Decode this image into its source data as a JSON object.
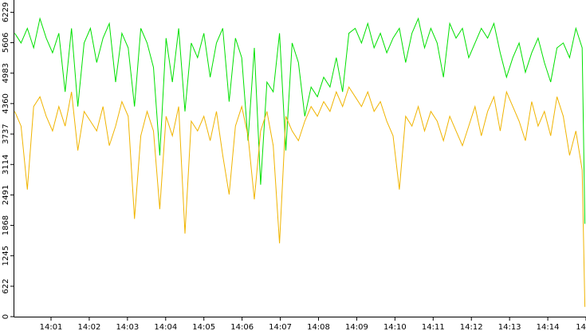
{
  "chart_data": {
    "type": "line",
    "x": [
      0.05,
      0.215,
      0.38,
      0.545,
      0.71,
      0.875,
      1.04,
      1.205,
      1.37,
      1.535,
      1.7,
      1.865,
      2.03,
      2.195,
      2.36,
      2.525,
      2.69,
      2.855,
      3.02,
      3.185,
      3.35,
      3.515,
      3.68,
      3.845,
      4.01,
      4.175,
      4.34,
      4.505,
      4.67,
      4.835,
      5.0,
      5.165,
      5.33,
      5.495,
      5.66,
      5.825,
      5.99,
      6.155,
      6.32,
      6.485,
      6.65,
      6.815,
      6.98,
      7.145,
      7.31,
      7.475,
      7.64,
      7.805,
      7.97,
      8.135,
      8.3,
      8.465,
      8.63,
      8.795,
      8.96,
      9.125,
      9.29,
      9.455,
      9.62,
      9.785,
      9.95,
      10.115,
      10.28,
      10.445,
      10.61,
      10.775,
      10.94,
      11.105,
      11.27,
      11.435,
      11.6,
      11.765,
      11.93,
      12.095,
      12.26,
      12.425,
      12.59,
      12.755,
      12.92,
      13.085,
      13.25,
      13.415,
      13.58,
      13.745,
      13.91,
      14.075,
      14.24,
      14.405,
      14.57,
      14.735,
      14.9,
      14.97
    ],
    "series": [
      {
        "color": "#00e000",
        "values": [
          5800,
          5600,
          5900,
          5500,
          6100,
          5700,
          5400,
          5800,
          4600,
          5900,
          4300,
          5600,
          5900,
          5200,
          5700,
          6000,
          4800,
          5800,
          5500,
          4300,
          5900,
          5600,
          5100,
          3300,
          5700,
          4800,
          5900,
          4200,
          5600,
          5300,
          5800,
          4900,
          5600,
          5900,
          4400,
          5700,
          5300,
          3600,
          5500,
          2700,
          4800,
          4600,
          5800,
          3400,
          5600,
          5200,
          4100,
          4700,
          4500,
          4900,
          4700,
          5300,
          4600,
          5800,
          5900,
          5600,
          6000,
          5500,
          5800,
          5400,
          5700,
          5900,
          5200,
          5800,
          6100,
          5500,
          5900,
          5600,
          4900,
          6000,
          5700,
          5900,
          5300,
          5600,
          5900,
          5700,
          6000,
          5400,
          4900,
          5300,
          5600,
          5000,
          5400,
          5700,
          5200,
          4800,
          5500,
          5600,
          5300,
          5900,
          5500,
          1900
        ]
      },
      {
        "color": "#f0b400",
        "values": [
          4200,
          3900,
          2600,
          4300,
          4500,
          4100,
          3800,
          4300,
          3900,
          4600,
          3400,
          4200,
          4000,
          3800,
          4300,
          3500,
          3900,
          4400,
          4100,
          2000,
          3700,
          4200,
          3800,
          2200,
          4100,
          3700,
          4300,
          1700,
          4000,
          3800,
          4100,
          3600,
          4200,
          3300,
          2500,
          3900,
          4300,
          3700,
          2400,
          3800,
          4200,
          3500,
          1500,
          4100,
          3800,
          3600,
          4000,
          4300,
          4100,
          4400,
          4200,
          4600,
          4300,
          4700,
          4500,
          4300,
          4600,
          4200,
          4400,
          4000,
          3700,
          2600,
          4100,
          3900,
          4300,
          3800,
          4200,
          4000,
          3600,
          4100,
          3800,
          3500,
          3900,
          4300,
          3700,
          4200,
          4500,
          3800,
          4600,
          4300,
          4000,
          3600,
          4400,
          3900,
          4200,
          3700,
          4500,
          4100,
          3300,
          3800,
          3000,
          200
        ]
      }
    ],
    "xlim": [
      0.04,
      15.0
    ],
    "xticks": [
      {
        "value": 1,
        "label": "14:01"
      },
      {
        "value": 2,
        "label": "14:02"
      },
      {
        "value": 3,
        "label": "14:03"
      },
      {
        "value": 4,
        "label": "14:04"
      },
      {
        "value": 5,
        "label": "14:05"
      },
      {
        "value": 6,
        "label": "14:06"
      },
      {
        "value": 7,
        "label": "14:07"
      },
      {
        "value": 8,
        "label": "14:08"
      },
      {
        "value": 9,
        "label": "14:09"
      },
      {
        "value": 10,
        "label": "14:10"
      },
      {
        "value": 11,
        "label": "14:11"
      },
      {
        "value": 12,
        "label": "14:12"
      },
      {
        "value": 13,
        "label": "14:13"
      },
      {
        "value": 14,
        "label": "14:14"
      },
      {
        "value": 15,
        "label": "14"
      }
    ],
    "ylim": [
      0,
      6480
    ],
    "yticks": [
      0,
      622,
      1245,
      1868,
      2491,
      3114,
      3737,
      4360,
      4983,
      5606,
      6229
    ]
  }
}
